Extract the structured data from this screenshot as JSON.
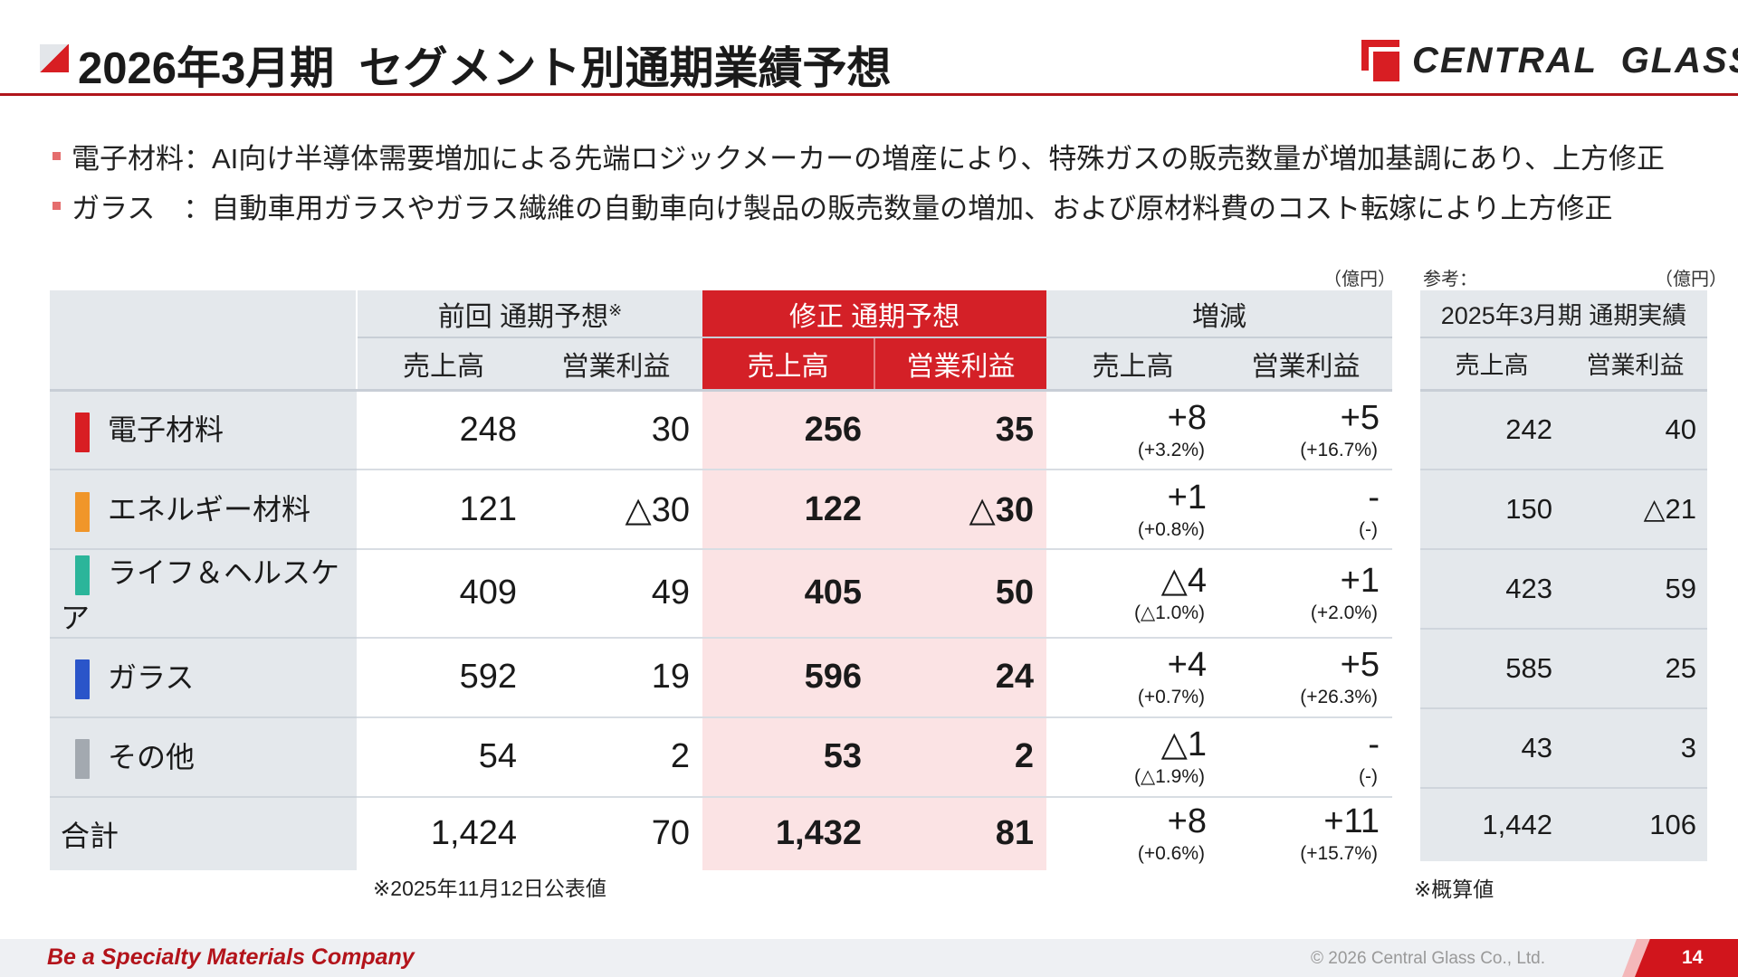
{
  "header": {
    "title": "2026年3月期  セグメント別通期業績予想",
    "logo_text": "CENTRAL  GLASS"
  },
  "bullets": [
    "電子材料：AI向け半導体需要増加による先端ロジックメーカーの増産により、特殊ガスの販売数量が増加基調にあり、上方修正",
    "ガラス　：自動車用ガラスやガラス繊維の自動車向け製品の販売数量の増加、および原材料費のコスト転嫁により上方修正"
  ],
  "main_table": {
    "unit": "（億円）",
    "groups": {
      "previous": "前回  通期予想",
      "previous_mark": "※",
      "revised": "修正 通期予想",
      "change": "増減"
    },
    "subheaders": {
      "sales": "売上高",
      "op": "営業利益"
    },
    "rows": [
      {
        "segment": "電子材料",
        "color": "#d81e23",
        "prev_sales": "248",
        "prev_op": "30",
        "new_sales": "256",
        "new_op": "35",
        "d_sales": "+8",
        "d_sales_pct": "(+3.2%)",
        "d_op": "+5",
        "d_op_pct": "(+16.7%)"
      },
      {
        "segment": "エネルギー材料",
        "color": "#f0962a",
        "prev_sales": "121",
        "prev_op": "△30",
        "new_sales": "122",
        "new_op": "△30",
        "d_sales": "+1",
        "d_sales_pct": "(+0.8%)",
        "d_op": "-",
        "d_op_pct": "(-)"
      },
      {
        "segment": "ライフ＆ヘルスケア",
        "color": "#2bb59a",
        "prev_sales": "409",
        "prev_op": "49",
        "new_sales": "405",
        "new_op": "50",
        "d_sales": "△4",
        "d_sales_pct": "(△1.0%)",
        "d_op": "+1",
        "d_op_pct": "(+2.0%)"
      },
      {
        "segment": "ガラス",
        "color": "#2a55c9",
        "prev_sales": "592",
        "prev_op": "19",
        "new_sales": "596",
        "new_op": "24",
        "d_sales": "+4",
        "d_sales_pct": "(+0.7%)",
        "d_op": "+5",
        "d_op_pct": "(+26.3%)"
      },
      {
        "segment": "その他",
        "color": "#a3a9b0",
        "prev_sales": "54",
        "prev_op": "2",
        "new_sales": "53",
        "new_op": "2",
        "d_sales": "△1",
        "d_sales_pct": "(△1.9%)",
        "d_op": "-",
        "d_op_pct": "(-)"
      }
    ],
    "total": {
      "segment": "合計",
      "prev_sales": "1,424",
      "prev_op": "70",
      "new_sales": "1,432",
      "new_op": "81",
      "d_sales": "+8",
      "d_sales_pct": "(+0.6%)",
      "d_op": "+11",
      "d_op_pct": "(+15.7%)"
    },
    "footnote": "※2025年11月12日公表値"
  },
  "ref_table": {
    "label": "参考：",
    "unit": "（億円）",
    "header": "2025年3月期  通期実績",
    "rows": [
      [
        "242",
        "40"
      ],
      [
        "150",
        "△21"
      ],
      [
        "423",
        "59"
      ],
      [
        "585",
        "25"
      ],
      [
        "43",
        "3"
      ]
    ],
    "total": [
      "1,442",
      "106"
    ],
    "footnote": "※概算値"
  },
  "footer": {
    "slogan": "Be a Specialty Materials Company",
    "copyright": "© 2026 Central Glass Co., Ltd.",
    "page": "14"
  }
}
